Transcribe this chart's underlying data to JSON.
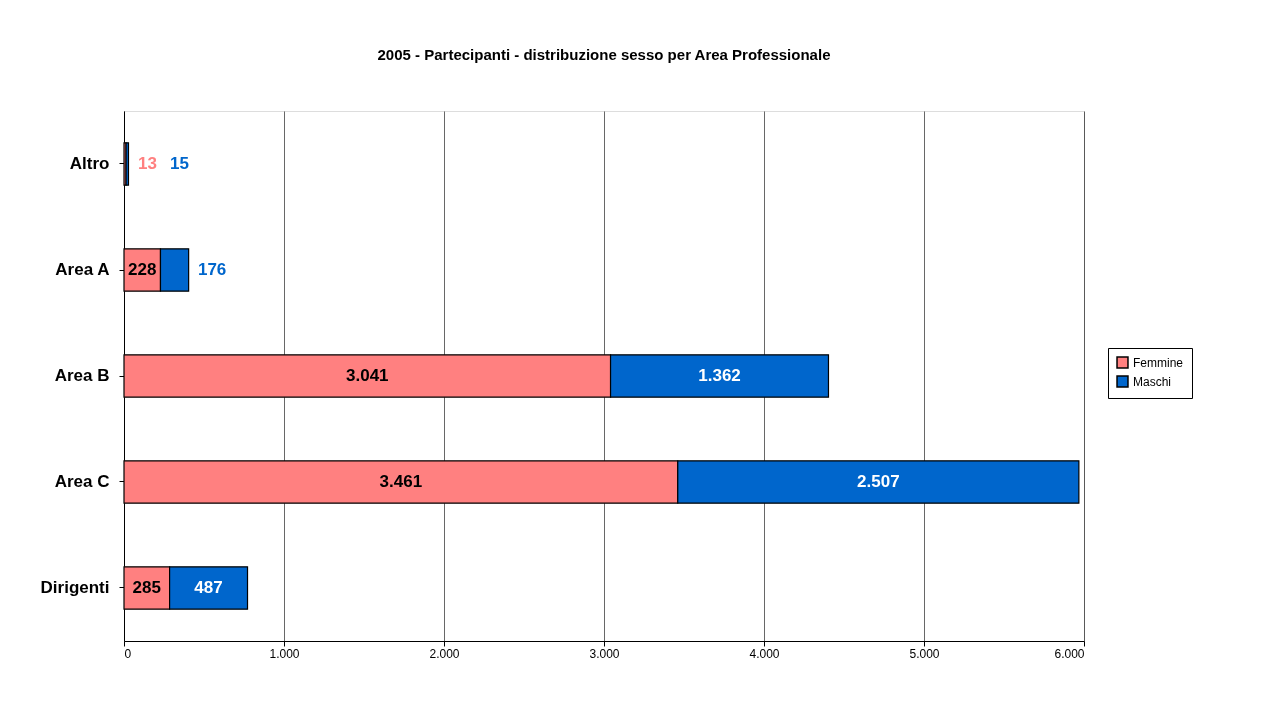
{
  "chart_data": {
    "type": "bar",
    "orientation": "horizontal",
    "stacked": true,
    "title": "2005 - Partecipanti - distribuzione sesso per Area Professionale",
    "categories": [
      "Altro",
      "Area A",
      "Area B",
      "Area C",
      "Dirigenti"
    ],
    "series": [
      {
        "name": "Femmine",
        "color": "#ff8080",
        "values": [
          13,
          228,
          3041,
          3461,
          285
        ],
        "value_labels": [
          "13",
          "228",
          "3.041",
          "3.461",
          "285"
        ]
      },
      {
        "name": "Maschi",
        "color": "#0066cc",
        "values": [
          15,
          176,
          1362,
          2507,
          487
        ],
        "value_labels": [
          "15",
          "176",
          "1.362",
          "2.507",
          "487"
        ]
      }
    ],
    "xlim": [
      0,
      6000
    ],
    "xticks": [
      0,
      {
        "value": 1000,
        "label": "1.000"
      },
      {
        "value": 2000,
        "label": "2.000"
      },
      {
        "value": 3000,
        "label": "3.000"
      },
      {
        "value": 4000,
        "label": "4.000"
      },
      {
        "value": 5000,
        "label": "5.000"
      },
      {
        "value": 6000,
        "label": "6.000"
      }
    ],
    "grid": "x",
    "legend": "right"
  }
}
